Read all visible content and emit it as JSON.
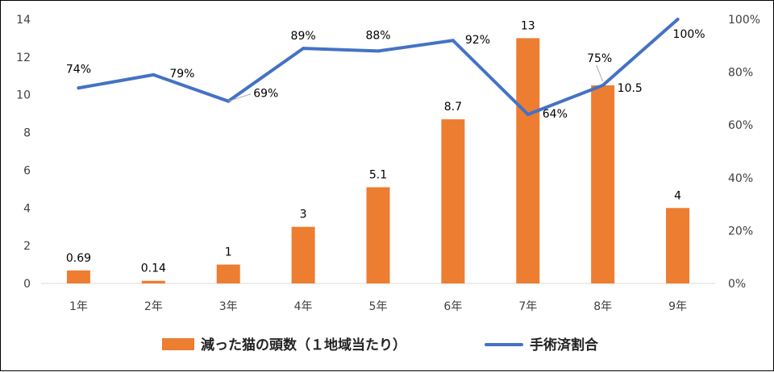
{
  "chart_data": {
    "type": "bar",
    "categories": [
      "1年",
      "2年",
      "3年",
      "4年",
      "5年",
      "6年",
      "7年",
      "8年",
      "9年"
    ],
    "series": [
      {
        "name": "減った猫の頭数（１地域当たり）",
        "type": "bar",
        "axis": "left",
        "values": [
          0.69,
          0.14,
          1,
          3,
          5.1,
          8.7,
          13,
          10.5,
          4
        ],
        "labels": [
          "0.69",
          "0.14",
          "1",
          "3",
          "5.1",
          "8.7",
          "13",
          "10.5",
          "4"
        ],
        "color": "#ED7D31"
      },
      {
        "name": "手術済割合",
        "type": "line",
        "axis": "right",
        "values": [
          0.74,
          0.79,
          0.69,
          0.89,
          0.88,
          0.92,
          0.64,
          0.75,
          1.0
        ],
        "labels": [
          "74%",
          "79%",
          "69%",
          "89%",
          "88%",
          "92%",
          "64%",
          "75%",
          "100%"
        ],
        "color": "#4472C4"
      }
    ],
    "y_left": {
      "lim": [
        0,
        14
      ],
      "ticks": [
        "0",
        "2",
        "4",
        "6",
        "8",
        "10",
        "12",
        "14"
      ]
    },
    "y_right": {
      "lim": [
        0,
        1
      ],
      "ticks": [
        "0%",
        "20%",
        "40%",
        "60%",
        "80%",
        "100%"
      ]
    },
    "xlabel": "",
    "ylabel": "",
    "title": "",
    "grid": false,
    "legend_position": "bottom"
  }
}
